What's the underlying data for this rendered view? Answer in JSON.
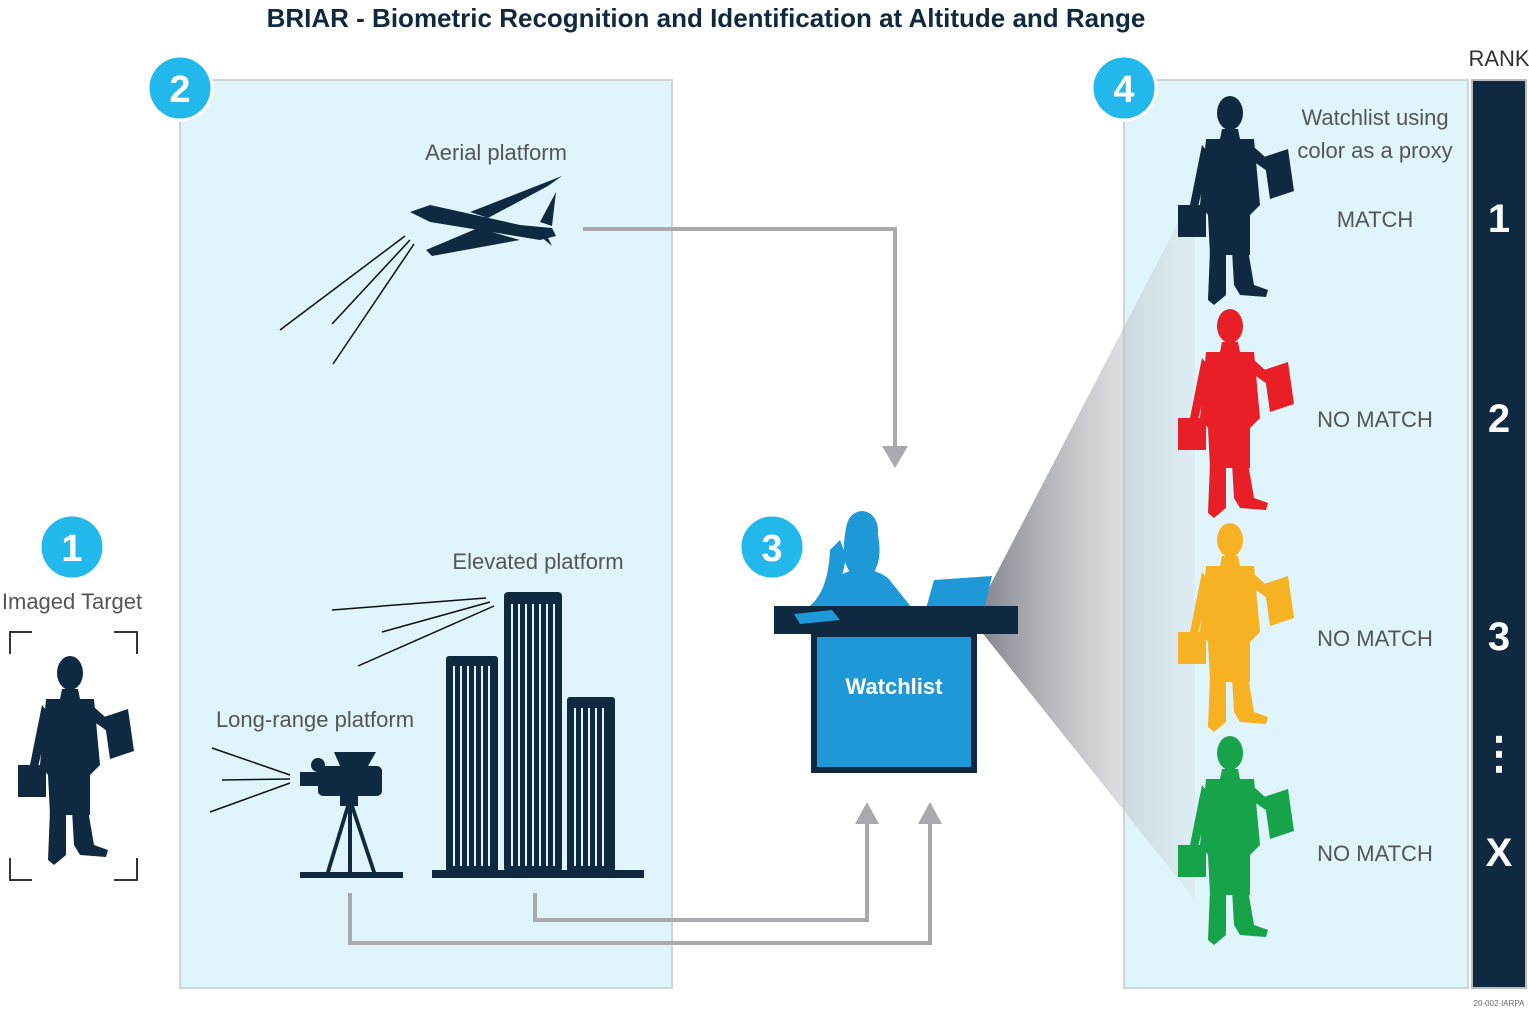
{
  "title": "BRIAR - Biometric Recognition and Identification at Altitude and Range",
  "steps": {
    "s1": "1",
    "s2": "2",
    "s3": "3",
    "s4": "4"
  },
  "labels": {
    "imaged_target": "Imaged Target",
    "aerial": "Aerial platform",
    "elevated": "Elevated platform",
    "long_range": "Long-range platform",
    "watchlist": "Watchlist",
    "watchlist_note_1": "Watchlist using",
    "watchlist_note_2": "color as a proxy"
  },
  "matches": [
    {
      "label": "MATCH",
      "rank": "1",
      "color": "#0f2a40"
    },
    {
      "label": "NO MATCH",
      "rank": "2",
      "color": "#e81f26"
    },
    {
      "label": "NO MATCH",
      "rank": "3",
      "color": "#f7b223"
    },
    {
      "label": "NO MATCH",
      "rank": "X",
      "color": "#16a34a"
    }
  ],
  "rank": {
    "header": "RANK",
    "ellipsis": "⋮"
  },
  "colors": {
    "navy": "#0f2a40",
    "accent_blue": "#22b8ec",
    "panel": "#dff4fb",
    "desk_blue": "#1e98d6",
    "arrow_gray": "#a9a9ae"
  },
  "icons": [
    "drone-icon",
    "building-icon",
    "video-camera-icon",
    "businessman-icon",
    "operator-icon",
    "laptop-icon"
  ],
  "footer_code": "20-002-IARPA"
}
